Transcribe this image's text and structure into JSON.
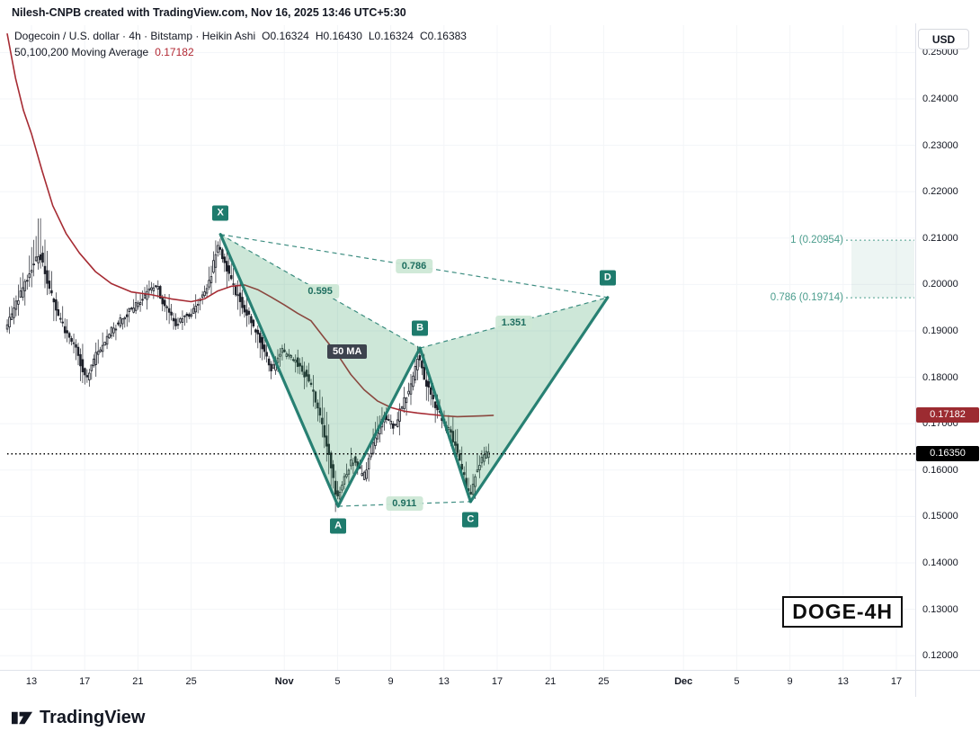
{
  "attribution": "Nilesh-CNPB created with TradingView.com, Nov 16, 2025 13:46 UTC+5:30",
  "header": {
    "symbol_line": "Dogecoin / U.S. dollar · 4h · Bitstamp · Heikin Ashi",
    "ohlc": [
      "O0.16324",
      "H0.16430",
      "L0.16324",
      "C0.16383"
    ],
    "ma_label": "50,100,200 Moving Average",
    "ma_value": "0.17182"
  },
  "currency_button": "USD",
  "watermark": "DOGE-4H",
  "ma_tag": "50 MA",
  "logo_text": "TradingView",
  "colors": {
    "candle": "#1c1f28",
    "ma_line": "#a62b33",
    "pattern": "#1e7b6d",
    "pattern_fill": "rgba(54,160,100,0.25)",
    "ratio_bg": "rgba(205,232,214,0.95)",
    "ratio_text": "#1e6e5f",
    "level": "#4b9d8d",
    "level_band": "rgba(75,157,141,0.10)",
    "grid": "#f3f5f8",
    "axis_border": "#e0e3eb",
    "price_line": "#000000"
  },
  "price_axis": {
    "labels": [
      "0.25000",
      "0.24000",
      "0.23000",
      "0.22000",
      "0.21000",
      "0.20000",
      "0.19000",
      "0.18000",
      "0.17000",
      "0.16000",
      "0.15000",
      "0.14000",
      "0.13000",
      "0.12000"
    ]
  },
  "time_axis": [
    {
      "label": "13",
      "d": 0
    },
    {
      "label": "17",
      "d": 4
    },
    {
      "label": "21",
      "d": 8
    },
    {
      "label": "25",
      "d": 12
    },
    {
      "label": "Nov",
      "d": 19,
      "major": true
    },
    {
      "label": "5",
      "d": 23
    },
    {
      "label": "9",
      "d": 27
    },
    {
      "label": "13",
      "d": 31
    },
    {
      "label": "17",
      "d": 35
    },
    {
      "label": "21",
      "d": 39
    },
    {
      "label": "25",
      "d": 43
    },
    {
      "label": "Dec",
      "d": 49,
      "major": true
    },
    {
      "label": "5",
      "d": 53
    },
    {
      "label": "9",
      "d": 57
    },
    {
      "label": "13",
      "d": 61
    },
    {
      "label": "17",
      "d": 65
    }
  ],
  "badges": [
    {
      "text": "0.17182",
      "price": 0.17182,
      "bg": "#9c2b31"
    },
    {
      "text": "0.16350",
      "price": 0.1635,
      "bg": "#000000"
    }
  ],
  "chart_data": {
    "type": "candlestick",
    "style": "Heikin Ashi",
    "symbol": "Dogecoin / U.S. dollar",
    "interval": "4h",
    "exchange": "Bitstamp",
    "last_ohlc": {
      "o": 0.16324,
      "h": 0.1643,
      "l": 0.16324,
      "c": 0.16383
    },
    "ylim": [
      0.12,
      0.25
    ],
    "y_tick": 0.01,
    "x_unit": "days since Oct 13",
    "candles": {
      "start_d": -1.82,
      "end_d": 34.35,
      "per_day": 6,
      "price_path": [
        [
          -1.82,
          0.19
        ],
        [
          -1.2,
          0.1945
        ],
        [
          -0.5,
          0.199
        ],
        [
          0.3,
          0.2045
        ],
        [
          0.8,
          0.2065
        ],
        [
          1.3,
          0.201
        ],
        [
          2.0,
          0.1945
        ],
        [
          2.8,
          0.1895
        ],
        [
          3.6,
          0.1855
        ],
        [
          4.3,
          0.179
        ],
        [
          5.0,
          0.1845
        ],
        [
          6.0,
          0.1895
        ],
        [
          7.0,
          0.1925
        ],
        [
          8.0,
          0.1955
        ],
        [
          9.0,
          0.1985
        ],
        [
          9.6,
          0.1995
        ],
        [
          10.3,
          0.1945
        ],
        [
          11.0,
          0.1915
        ],
        [
          12.0,
          0.1935
        ],
        [
          13.0,
          0.1975
        ],
        [
          13.6,
          0.2015
        ],
        [
          14.2,
          0.2085
        ],
        [
          14.7,
          0.2045
        ],
        [
          15.4,
          0.199
        ],
        [
          16.4,
          0.1935
        ],
        [
          17.4,
          0.1875
        ],
        [
          18.2,
          0.1815
        ],
        [
          19.0,
          0.1855
        ],
        [
          20.0,
          0.1835
        ],
        [
          21.0,
          0.1795
        ],
        [
          21.8,
          0.172
        ],
        [
          22.5,
          0.1635
        ],
        [
          23.1,
          0.1535
        ],
        [
          23.7,
          0.159
        ],
        [
          24.4,
          0.1625
        ],
        [
          25.1,
          0.158
        ],
        [
          25.9,
          0.1665
        ],
        [
          26.7,
          0.1715
        ],
        [
          27.4,
          0.169
        ],
        [
          28.1,
          0.1745
        ],
        [
          28.7,
          0.178
        ],
        [
          29.2,
          0.1845
        ],
        [
          29.8,
          0.179
        ],
        [
          30.5,
          0.1735
        ],
        [
          31.2,
          0.17
        ],
        [
          32.0,
          0.166
        ],
        [
          32.7,
          0.158
        ],
        [
          33.1,
          0.1545
        ],
        [
          33.7,
          0.161
        ],
        [
          34.35,
          0.1635
        ]
      ]
    },
    "moving_average": {
      "label": "50,100,200 Moving Average",
      "value": 0.17182,
      "path": [
        [
          -1.82,
          0.254
        ],
        [
          -1.2,
          0.2445
        ],
        [
          -0.6,
          0.2375
        ],
        [
          0,
          0.2325
        ],
        [
          0.8,
          0.2245
        ],
        [
          1.6,
          0.217
        ],
        [
          2.6,
          0.211
        ],
        [
          3.6,
          0.2068
        ],
        [
          4.8,
          0.2028
        ],
        [
          6,
          0.2002
        ],
        [
          7.5,
          0.1984
        ],
        [
          9,
          0.1978
        ],
        [
          10.5,
          0.1969
        ],
        [
          12,
          0.1963
        ],
        [
          13,
          0.1969
        ],
        [
          14,
          0.1986
        ],
        [
          15,
          0.1996
        ],
        [
          16,
          0.1999
        ],
        [
          17,
          0.1989
        ],
        [
          18,
          0.1973
        ],
        [
          19,
          0.1956
        ],
        [
          20,
          0.1938
        ],
        [
          21,
          0.1922
        ],
        [
          22,
          0.1885
        ],
        [
          23,
          0.1849
        ],
        [
          24,
          0.1806
        ],
        [
          25,
          0.1773
        ],
        [
          26,
          0.1749
        ],
        [
          27,
          0.1735
        ],
        [
          28,
          0.1727
        ],
        [
          29,
          0.1723
        ],
        [
          30,
          0.172
        ],
        [
          31,
          0.1717
        ],
        [
          32,
          0.1715
        ],
        [
          33,
          0.1716
        ],
        [
          34,
          0.1717
        ],
        [
          34.7,
          0.1718
        ]
      ]
    },
    "pattern": {
      "name": "bearish-xabcd",
      "points": [
        {
          "name": "X",
          "d": 14.2,
          "p": 0.2108,
          "dy": -24
        },
        {
          "name": "A",
          "d": 23.05,
          "p": 0.1522,
          "dy": 22
        },
        {
          "name": "B",
          "d": 29.2,
          "p": 0.1863,
          "dy": -22
        },
        {
          "name": "C",
          "d": 33.0,
          "p": 0.1532,
          "dy": 20
        },
        {
          "name": "D",
          "d": 43.3,
          "p": 0.1972,
          "dy": -22
        }
      ],
      "solid": [
        [
          "X",
          "A"
        ],
        [
          "A",
          "B"
        ],
        [
          "B",
          "C"
        ],
        [
          "C",
          "D"
        ]
      ],
      "dashed": [
        [
          "X",
          "B"
        ],
        [
          "A",
          "C"
        ],
        [
          "X",
          "D"
        ],
        [
          "B",
          "D"
        ]
      ],
      "fills": [
        [
          "X",
          "A",
          "B"
        ],
        [
          "B",
          "C",
          "D"
        ]
      ],
      "ratios": [
        {
          "text": "0.595",
          "between": [
            "X",
            "B"
          ]
        },
        {
          "text": "0.786",
          "between": [
            "X",
            "D"
          ]
        },
        {
          "text": "0.911",
          "between": [
            "A",
            "C"
          ]
        },
        {
          "text": "1.351",
          "between": [
            "B",
            "D"
          ]
        }
      ]
    },
    "levels": [
      {
        "text": "1 (0.20954)",
        "price": 0.20954
      },
      {
        "text": "0.786 (0.19714)",
        "price": 0.19714
      }
    ],
    "price_line": {
      "label": "0.16350",
      "price": 0.1635
    }
  }
}
